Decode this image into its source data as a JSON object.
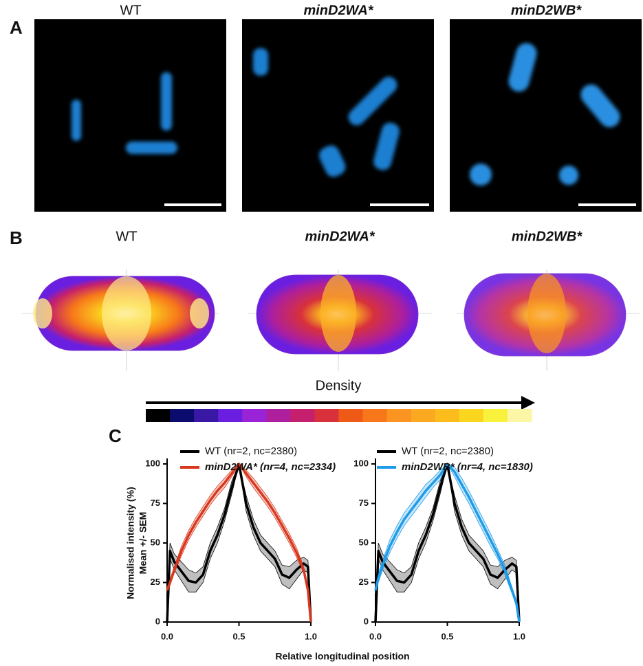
{
  "figure": {
    "panel_a": {
      "label": "A",
      "titles": [
        "WT",
        "minD2WA*",
        "minD2WB*"
      ]
    },
    "panel_b": {
      "label": "B",
      "titles": [
        "WT",
        "minD2WA*",
        "minD2WB*"
      ],
      "colorbar_label": "Density",
      "colorbar_colors": [
        "#000000",
        "#0c0c6e",
        "#3a18a6",
        "#6a1fe0",
        "#9a23d8",
        "#ad1f9c",
        "#c4206d",
        "#d8313b",
        "#ef5a17",
        "#f7771a",
        "#fb9420",
        "#fca922",
        "#fcbd1c",
        "#fbd61e",
        "#f9f23c",
        "#fcf7a6"
      ]
    },
    "panel_c": {
      "label": "C",
      "xlabel": "Relative longitudinal position"
    }
  },
  "chart_data": [
    {
      "type": "line",
      "ylabel": [
        "Normalised intensity (%)",
        "Mean +/- SEM"
      ],
      "x": [
        0,
        0.02,
        0.05,
        0.1,
        0.15,
        0.2,
        0.25,
        0.3,
        0.35,
        0.4,
        0.45,
        0.5,
        0.55,
        0.6,
        0.65,
        0.7,
        0.75,
        0.8,
        0.85,
        0.9,
        0.95,
        0.98,
        1
      ],
      "xlim": [
        0,
        1
      ],
      "ylim": [
        0,
        100
      ],
      "xticks": [
        {
          "value": 0,
          "label": "0.0"
        },
        {
          "value": 0.5,
          "label": "0.5"
        },
        {
          "value": 1,
          "label": "1.0"
        }
      ],
      "yticks": [
        0,
        25,
        50,
        75,
        100
      ],
      "series": [
        {
          "name": "WT (nr=2, nc=2380)",
          "color": "#000000",
          "values": [
            0,
            45,
            38,
            32,
            26,
            25,
            30,
            45,
            55,
            68,
            85,
            100,
            75,
            60,
            50,
            45,
            40,
            30,
            28,
            33,
            37,
            35,
            0
          ],
          "errors": [
            0,
            5,
            5,
            6,
            7,
            6,
            5,
            5,
            5,
            4,
            4,
            0,
            5,
            5,
            5,
            5,
            5,
            6,
            7,
            6,
            4,
            4,
            0
          ]
        },
        {
          "name": "minD2WA* (nr=4, nc=2334)",
          "color": "#d9381e",
          "values": [
            20,
            25,
            33,
            45,
            55,
            63,
            70,
            77,
            83,
            88,
            94,
            100,
            94,
            88,
            82,
            76,
            69,
            61,
            53,
            44,
            33,
            20,
            0
          ],
          "errors": [
            2,
            2,
            2,
            3,
            3,
            3,
            3,
            3,
            3,
            3,
            2,
            0,
            2,
            3,
            3,
            3,
            3,
            3,
            3,
            3,
            2,
            2,
            0
          ]
        }
      ]
    },
    {
      "type": "line",
      "x": [
        0,
        0.02,
        0.05,
        0.1,
        0.15,
        0.2,
        0.25,
        0.3,
        0.35,
        0.4,
        0.45,
        0.5,
        0.55,
        0.6,
        0.65,
        0.7,
        0.75,
        0.8,
        0.85,
        0.9,
        0.95,
        0.98,
        1
      ],
      "xlim": [
        0,
        1
      ],
      "ylim": [
        0,
        100
      ],
      "xticks": [
        {
          "value": 0,
          "label": "0.0"
        },
        {
          "value": 0.5,
          "label": "0.5"
        },
        {
          "value": 1,
          "label": "1.0"
        }
      ],
      "yticks": [
        0,
        25,
        50,
        75,
        100
      ],
      "series": [
        {
          "name": "WT (nr=2, nc=2380)",
          "color": "#000000",
          "values": [
            0,
            45,
            38,
            32,
            26,
            25,
            30,
            45,
            55,
            68,
            85,
            100,
            75,
            60,
            50,
            45,
            40,
            30,
            28,
            33,
            37,
            35,
            0
          ],
          "errors": [
            0,
            5,
            5,
            6,
            7,
            6,
            5,
            5,
            5,
            4,
            4,
            0,
            5,
            5,
            5,
            5,
            5,
            6,
            7,
            6,
            4,
            4,
            0
          ]
        },
        {
          "name": "minD2WB* (nr=4, nc=1830)",
          "color": "#1e9be9",
          "values": [
            20,
            28,
            36,
            48,
            57,
            65,
            71,
            77,
            83,
            88,
            93,
            100,
            95,
            87,
            79,
            70,
            61,
            52,
            43,
            33,
            20,
            12,
            0
          ],
          "errors": [
            2,
            3,
            3,
            4,
            4,
            4,
            4,
            4,
            4,
            3,
            3,
            0,
            3,
            4,
            4,
            4,
            4,
            4,
            3,
            3,
            2,
            2,
            0
          ]
        }
      ]
    }
  ]
}
